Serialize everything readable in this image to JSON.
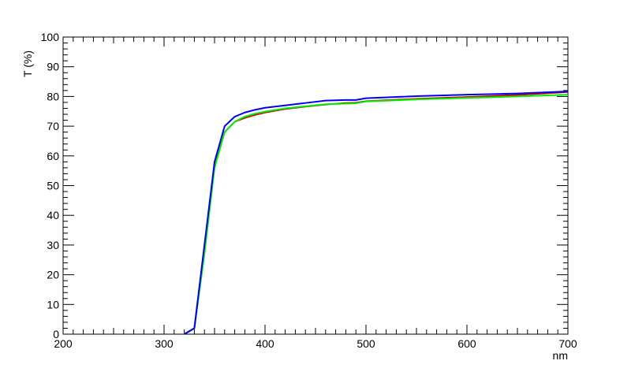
{
  "chart_data": {
    "type": "line",
    "title": "",
    "xlabel": "nm",
    "ylabel": "T (%)",
    "xlim": [
      200,
      700
    ],
    "ylim": [
      0,
      100
    ],
    "x_ticks": [
      200,
      300,
      400,
      500,
      600,
      700
    ],
    "y_ticks": [
      0,
      10,
      20,
      30,
      40,
      50,
      60,
      70,
      80,
      90,
      100
    ],
    "grid": false,
    "legend": "none",
    "series": [
      {
        "color": "#cc0000",
        "x": [
          320,
          330,
          340,
          350,
          360,
          370,
          380,
          390,
          400,
          420,
          440,
          460,
          480,
          490,
          500,
          550,
          600,
          650,
          700
        ],
        "y": [
          0,
          2,
          28,
          57,
          68,
          71.5,
          72.8,
          73.8,
          74.6,
          75.8,
          76.6,
          77.3,
          77.8,
          77.9,
          78.4,
          79.2,
          79.8,
          80.5,
          81.5
        ]
      },
      {
        "color": "#00ee00",
        "x": [
          320,
          330,
          340,
          350,
          360,
          370,
          380,
          390,
          400,
          420,
          440,
          460,
          480,
          490,
          500,
          550,
          600,
          650,
          700
        ],
        "y": [
          0,
          2,
          27,
          56,
          68,
          71.5,
          73.2,
          74.2,
          74.9,
          76.0,
          76.7,
          77.4,
          77.6,
          77.7,
          78.3,
          79.0,
          79.5,
          80.0,
          80.6
        ]
      },
      {
        "color": "#0000ee",
        "x": [
          320,
          330,
          340,
          350,
          360,
          370,
          380,
          390,
          400,
          420,
          440,
          460,
          480,
          490,
          500,
          550,
          600,
          650,
          700
        ],
        "y": [
          0,
          2,
          30,
          58,
          70,
          73.2,
          74.6,
          75.5,
          76.2,
          77.0,
          77.8,
          78.6,
          78.8,
          78.8,
          79.4,
          80.1,
          80.6,
          81.0,
          81.7
        ]
      }
    ]
  }
}
